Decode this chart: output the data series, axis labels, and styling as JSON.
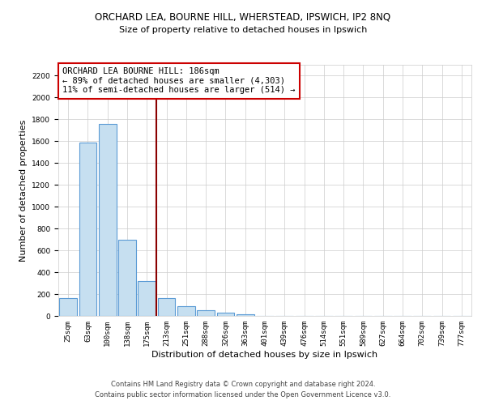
{
  "title": "ORCHARD LEA, BOURNE HILL, WHERSTEAD, IPSWICH, IP2 8NQ",
  "subtitle": "Size of property relative to detached houses in Ipswich",
  "xlabel": "Distribution of detached houses by size in Ipswich",
  "ylabel": "Number of detached properties",
  "categories": [
    "25sqm",
    "63sqm",
    "100sqm",
    "138sqm",
    "175sqm",
    "213sqm",
    "251sqm",
    "288sqm",
    "326sqm",
    "363sqm",
    "401sqm",
    "439sqm",
    "476sqm",
    "514sqm",
    "551sqm",
    "589sqm",
    "627sqm",
    "664sqm",
    "702sqm",
    "739sqm",
    "777sqm"
  ],
  "values": [
    160,
    1590,
    1760,
    700,
    320,
    160,
    90,
    55,
    30,
    15,
    0,
    0,
    0,
    0,
    0,
    0,
    0,
    0,
    0,
    0,
    0
  ],
  "bar_color": "#c6dff0",
  "bar_edge_color": "#5b9bd5",
  "vline_color": "#8b0000",
  "annotation_title": "ORCHARD LEA BOURNE HILL: 186sqm",
  "annotation_line1": "← 89% of detached houses are smaller (4,303)",
  "annotation_line2": "11% of semi-detached houses are larger (514) →",
  "annotation_box_color": "#ffffff",
  "annotation_box_edge_color": "#cc0000",
  "ylim": [
    0,
    2300
  ],
  "yticks": [
    0,
    200,
    400,
    600,
    800,
    1000,
    1200,
    1400,
    1600,
    1800,
    2000,
    2200
  ],
  "footnote1": "Contains HM Land Registry data © Crown copyright and database right 2024.",
  "footnote2": "Contains public sector information licensed under the Open Government Licence v3.0.",
  "bg_color": "#ffffff",
  "grid_color": "#cccccc",
  "title_fontsize": 8.5,
  "subtitle_fontsize": 8,
  "axis_label_fontsize": 8,
  "tick_fontsize": 6.5,
  "annotation_fontsize": 7.5,
  "footnote_fontsize": 6
}
